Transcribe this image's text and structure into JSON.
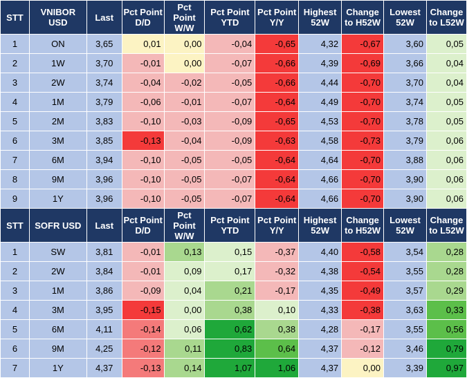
{
  "columns": {
    "stt": "STT",
    "last": "Last",
    "dd": "Pct Point D/D",
    "ww": "Pct Point W/W",
    "ytd": "Pct Point YTD",
    "yy": "Pct Point Y/Y",
    "high52w": "Highest 52W",
    "chg_h52w": "Change to H52W",
    "low52w": "Lowest 52W",
    "chg_l52w": "Change to L52W"
  },
  "colors": {
    "header_bg": "#1f3864",
    "header_text": "#ffffff",
    "base_blue": "#b4c6e7",
    "red_strong": "#f43a3a",
    "red_medium": "#f47a7a",
    "red_light": "#f4b8b8",
    "yellow_light": "#fcf3c3",
    "green_pale": "#dcf0cc",
    "green_light": "#a9d88f",
    "green_medium": "#5cbf4a",
    "green_strong": "#1fa83a"
  },
  "sections": [
    {
      "name": "VNIBOR USD",
      "rows": [
        {
          "stt": "1",
          "tenor": "ON",
          "last": "3,65",
          "dd": "0,01",
          "ww": "0,00",
          "ytd": "-0,04",
          "yy": "-0,65",
          "high": "4,32",
          "chg_h": "-0,67",
          "low": "3,60",
          "chg_l": "0,05"
        },
        {
          "stt": "2",
          "tenor": "1W",
          "last": "3,70",
          "dd": "-0,01",
          "ww": "0,00",
          "ytd": "-0,07",
          "yy": "-0,66",
          "high": "4,39",
          "chg_h": "-0,69",
          "low": "3,66",
          "chg_l": "0,04"
        },
        {
          "stt": "3",
          "tenor": "2W",
          "last": "3,74",
          "dd": "-0,04",
          "ww": "-0,02",
          "ytd": "-0,05",
          "yy": "-0,66",
          "high": "4,44",
          "chg_h": "-0,70",
          "low": "3,70",
          "chg_l": "0,04"
        },
        {
          "stt": "4",
          "tenor": "1M",
          "last": "3,79",
          "dd": "-0,06",
          "ww": "-0,01",
          "ytd": "-0,07",
          "yy": "-0,64",
          "high": "4,49",
          "chg_h": "-0,70",
          "low": "3,74",
          "chg_l": "0,05"
        },
        {
          "stt": "5",
          "tenor": "2M",
          "last": "3,83",
          "dd": "-0,10",
          "ww": "-0,03",
          "ytd": "-0,09",
          "yy": "-0,65",
          "high": "4,53",
          "chg_h": "-0,70",
          "low": "3,78",
          "chg_l": "0,05"
        },
        {
          "stt": "6",
          "tenor": "3M",
          "last": "3,85",
          "dd": "-0,13",
          "ww": "-0,04",
          "ytd": "-0,09",
          "yy": "-0,63",
          "high": "4,58",
          "chg_h": "-0,73",
          "low": "3,79",
          "chg_l": "0,06"
        },
        {
          "stt": "7",
          "tenor": "6M",
          "last": "3,94",
          "dd": "-0,10",
          "ww": "-0,05",
          "ytd": "-0,05",
          "yy": "-0,64",
          "high": "4,64",
          "chg_h": "-0,70",
          "low": "3,88",
          "chg_l": "0,06"
        },
        {
          "stt": "8",
          "tenor": "9M",
          "last": "3,96",
          "dd": "-0,10",
          "ww": "-0,05",
          "ytd": "-0,07",
          "yy": "-0,64",
          "high": "4,66",
          "chg_h": "-0,70",
          "low": "3,90",
          "chg_l": "0,06"
        },
        {
          "stt": "9",
          "tenor": "1Y",
          "last": "3,96",
          "dd": "-0,10",
          "ww": "-0,05",
          "ytd": "-0,07",
          "yy": "-0,64",
          "high": "4,66",
          "chg_h": "-0,70",
          "low": "3,90",
          "chg_l": "0,06"
        }
      ],
      "shades": [
        {
          "stt": "base_blue",
          "tenor": "base_blue",
          "last": "base_blue",
          "dd": "yellow_light",
          "ww": "yellow_light",
          "ytd": "red_light",
          "yy": "red_strong",
          "high": "base_blue",
          "chg_h": "red_strong",
          "low": "base_blue",
          "chg_l": "green_pale"
        },
        {
          "stt": "base_blue",
          "tenor": "base_blue",
          "last": "base_blue",
          "dd": "red_light",
          "ww": "yellow_light",
          "ytd": "red_light",
          "yy": "red_strong",
          "high": "base_blue",
          "chg_h": "red_strong",
          "low": "base_blue",
          "chg_l": "green_pale"
        },
        {
          "stt": "base_blue",
          "tenor": "base_blue",
          "last": "base_blue",
          "dd": "red_light",
          "ww": "red_light",
          "ytd": "red_light",
          "yy": "red_strong",
          "high": "base_blue",
          "chg_h": "red_strong",
          "low": "base_blue",
          "chg_l": "green_pale"
        },
        {
          "stt": "base_blue",
          "tenor": "base_blue",
          "last": "base_blue",
          "dd": "red_light",
          "ww": "red_light",
          "ytd": "red_light",
          "yy": "red_strong",
          "high": "base_blue",
          "chg_h": "red_strong",
          "low": "base_blue",
          "chg_l": "green_pale"
        },
        {
          "stt": "base_blue",
          "tenor": "base_blue",
          "last": "base_blue",
          "dd": "red_light",
          "ww": "red_light",
          "ytd": "red_light",
          "yy": "red_strong",
          "high": "base_blue",
          "chg_h": "red_strong",
          "low": "base_blue",
          "chg_l": "green_pale"
        },
        {
          "stt": "base_blue",
          "tenor": "base_blue",
          "last": "base_blue",
          "dd": "red_strong",
          "ww": "red_light",
          "ytd": "red_light",
          "yy": "red_strong",
          "high": "base_blue",
          "chg_h": "red_strong",
          "low": "base_blue",
          "chg_l": "green_pale"
        },
        {
          "stt": "base_blue",
          "tenor": "base_blue",
          "last": "base_blue",
          "dd": "red_light",
          "ww": "red_light",
          "ytd": "red_light",
          "yy": "red_strong",
          "high": "base_blue",
          "chg_h": "red_strong",
          "low": "base_blue",
          "chg_l": "green_pale"
        },
        {
          "stt": "base_blue",
          "tenor": "base_blue",
          "last": "base_blue",
          "dd": "red_light",
          "ww": "red_light",
          "ytd": "red_light",
          "yy": "red_strong",
          "high": "base_blue",
          "chg_h": "red_strong",
          "low": "base_blue",
          "chg_l": "green_pale"
        },
        {
          "stt": "base_blue",
          "tenor": "base_blue",
          "last": "base_blue",
          "dd": "red_light",
          "ww": "red_light",
          "ytd": "red_light",
          "yy": "red_strong",
          "high": "base_blue",
          "chg_h": "red_strong",
          "low": "base_blue",
          "chg_l": "green_pale"
        }
      ]
    },
    {
      "name": "SOFR USD",
      "rows": [
        {
          "stt": "1",
          "tenor": "SW",
          "last": "3,81",
          "dd": "-0,01",
          "ww": "0,13",
          "ytd": "0,15",
          "yy": "-0,37",
          "high": "4,40",
          "chg_h": "-0,58",
          "low": "3,54",
          "chg_l": "0,28"
        },
        {
          "stt": "2",
          "tenor": "2W",
          "last": "3,84",
          "dd": "-0,01",
          "ww": "0,09",
          "ytd": "0,17",
          "yy": "-0,32",
          "high": "4,38",
          "chg_h": "-0,54",
          "low": "3,55",
          "chg_l": "0,28"
        },
        {
          "stt": "3",
          "tenor": "1M",
          "last": "3,86",
          "dd": "-0,09",
          "ww": "0,04",
          "ytd": "0,21",
          "yy": "-0,17",
          "high": "4,35",
          "chg_h": "-0,49",
          "low": "3,57",
          "chg_l": "0,29"
        },
        {
          "stt": "4",
          "tenor": "3M",
          "last": "3,95",
          "dd": "-0,15",
          "ww": "0,00",
          "ytd": "0,38",
          "yy": "0,10",
          "high": "4,33",
          "chg_h": "-0,38",
          "low": "3,63",
          "chg_l": "0,33"
        },
        {
          "stt": "5",
          "tenor": "6M",
          "last": "4,11",
          "dd": "-0,14",
          "ww": "0,06",
          "ytd": "0,62",
          "yy": "0,38",
          "high": "4,28",
          "chg_h": "-0,17",
          "low": "3,55",
          "chg_l": "0,56"
        },
        {
          "stt": "6",
          "tenor": "9M",
          "last": "4,25",
          "dd": "-0,12",
          "ww": "0,11",
          "ytd": "0,83",
          "yy": "0,64",
          "high": "4,37",
          "chg_h": "-0,12",
          "low": "3,46",
          "chg_l": "0,79"
        },
        {
          "stt": "7",
          "tenor": "1Y",
          "last": "4,37",
          "dd": "-0,13",
          "ww": "0,14",
          "ytd": "1,07",
          "yy": "1,06",
          "high": "4,37",
          "chg_h": "0,00",
          "low": "3,39",
          "chg_l": "0,97"
        }
      ],
      "shades": [
        {
          "stt": "base_blue",
          "tenor": "base_blue",
          "last": "base_blue",
          "dd": "red_light",
          "ww": "green_light",
          "ytd": "green_pale",
          "yy": "red_light",
          "high": "base_blue",
          "chg_h": "red_strong",
          "low": "base_blue",
          "chg_l": "green_light"
        },
        {
          "stt": "base_blue",
          "tenor": "base_blue",
          "last": "base_blue",
          "dd": "red_light",
          "ww": "green_pale",
          "ytd": "green_pale",
          "yy": "red_light",
          "high": "base_blue",
          "chg_h": "red_strong",
          "low": "base_blue",
          "chg_l": "green_light"
        },
        {
          "stt": "base_blue",
          "tenor": "base_blue",
          "last": "base_blue",
          "dd": "red_light",
          "ww": "green_pale",
          "ytd": "green_light",
          "yy": "red_light",
          "high": "base_blue",
          "chg_h": "red_strong",
          "low": "base_blue",
          "chg_l": "green_light"
        },
        {
          "stt": "base_blue",
          "tenor": "base_blue",
          "last": "base_blue",
          "dd": "red_strong",
          "ww": "green_pale",
          "ytd": "green_light",
          "yy": "green_pale",
          "high": "base_blue",
          "chg_h": "red_strong",
          "low": "base_blue",
          "chg_l": "green_medium"
        },
        {
          "stt": "base_blue",
          "tenor": "base_blue",
          "last": "base_blue",
          "dd": "red_medium",
          "ww": "green_pale",
          "ytd": "green_strong",
          "yy": "green_light",
          "high": "base_blue",
          "chg_h": "red_light",
          "low": "base_blue",
          "chg_l": "green_medium"
        },
        {
          "stt": "base_blue",
          "tenor": "base_blue",
          "last": "base_blue",
          "dd": "red_medium",
          "ww": "green_light",
          "ytd": "green_strong",
          "yy": "green_medium",
          "high": "base_blue",
          "chg_h": "red_light",
          "low": "base_blue",
          "chg_l": "green_strong"
        },
        {
          "stt": "base_blue",
          "tenor": "base_blue",
          "last": "base_blue",
          "dd": "red_medium",
          "ww": "green_light",
          "ytd": "green_strong",
          "yy": "green_strong",
          "high": "base_blue",
          "chg_h": "yellow_light",
          "low": "base_blue",
          "chg_l": "green_strong"
        }
      ]
    }
  ]
}
